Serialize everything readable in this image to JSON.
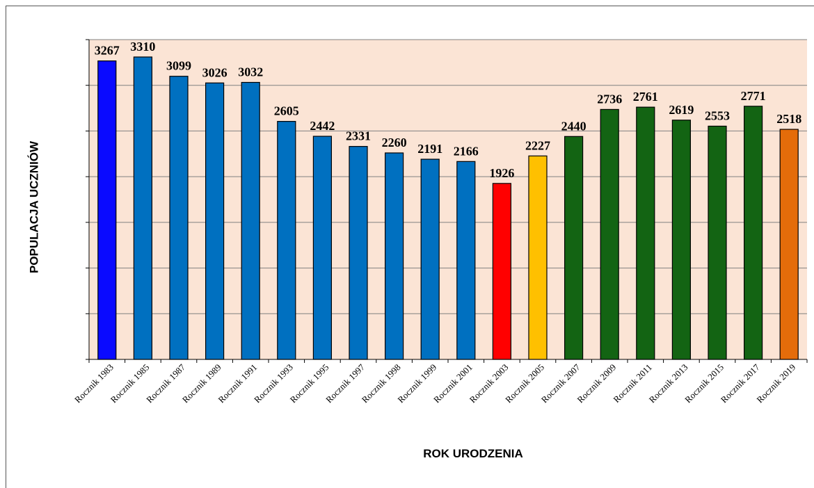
{
  "chart_data": {
    "type": "bar",
    "x_label": "ROK URODZENIA",
    "y_label": "POPULACJA UCZNIÓW",
    "categories": [
      "Rocznik 1983",
      "Rocznik 1985",
      "Rocznik 1987",
      "Rocznik 1989",
      "Rocznik 1991",
      "Rocznik 1993",
      "Rocznik 1995",
      "Rocznik 1997",
      "Rocznik 1998",
      "Rocznik 1999",
      "Rocznik 2001",
      "Rocznik 2003",
      "Rocznik 2005",
      "Rocznik 2007",
      "Rocznik 2009",
      "Rocznik 2011",
      "Rocznik 2013",
      "Rocznik 2015",
      "Rocznik 2017",
      "Rocznik 2019"
    ],
    "values": [
      3267,
      3310,
      3099,
      3026,
      3032,
      2605,
      2442,
      2331,
      2260,
      2191,
      2166,
      1926,
      2227,
      2440,
      2736,
      2761,
      2619,
      2553,
      2771,
      2518
    ],
    "colors": [
      "#0a0aff",
      "#0070c0",
      "#0070c0",
      "#0070c0",
      "#0070c0",
      "#0070c0",
      "#0070c0",
      "#0070c0",
      "#0070c0",
      "#0070c0",
      "#0070c0",
      "#ff0000",
      "#ffc000",
      "#136413",
      "#136413",
      "#136413",
      "#136413",
      "#136413",
      "#136413",
      "#e46c0a"
    ],
    "ylim": [
      0,
      3500
    ],
    "yticks": [
      0,
      500,
      1000,
      1500,
      2000,
      2500,
      3000,
      3500
    ],
    "grid": true
  }
}
